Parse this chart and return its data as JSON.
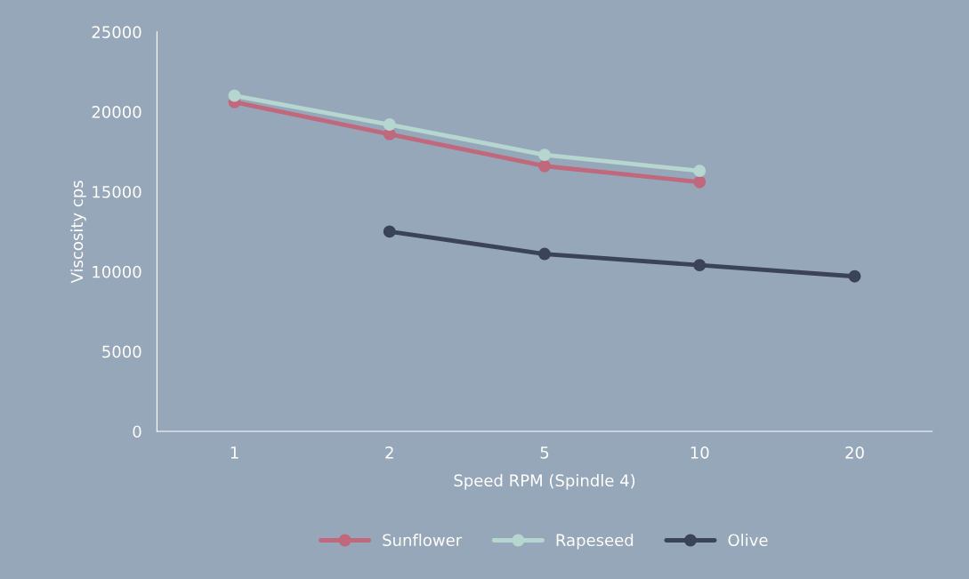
{
  "chart_data": {
    "type": "line",
    "xlabel": "Speed RPM (Spindle 4)",
    "ylabel": "Viscosity cps",
    "categories": [
      "1",
      "2",
      "5",
      "10",
      "20"
    ],
    "series": [
      {
        "name": "Sunflower",
        "color": "#c0687c",
        "values": [
          20600,
          18600,
          16600,
          15600,
          null
        ]
      },
      {
        "name": "Rapeseed",
        "color": "#b6d6d0",
        "values": [
          21000,
          19200,
          17300,
          16300,
          null
        ]
      },
      {
        "name": "Olive",
        "color": "#3b4357",
        "values": [
          null,
          12500,
          11100,
          10400,
          9700
        ]
      }
    ],
    "ylim": [
      0,
      25000
    ],
    "yticks": [
      0,
      5000,
      10000,
      15000,
      20000,
      25000
    ],
    "grid": false,
    "legend": "bottom",
    "marker": "circle",
    "line_style": "solid"
  }
}
